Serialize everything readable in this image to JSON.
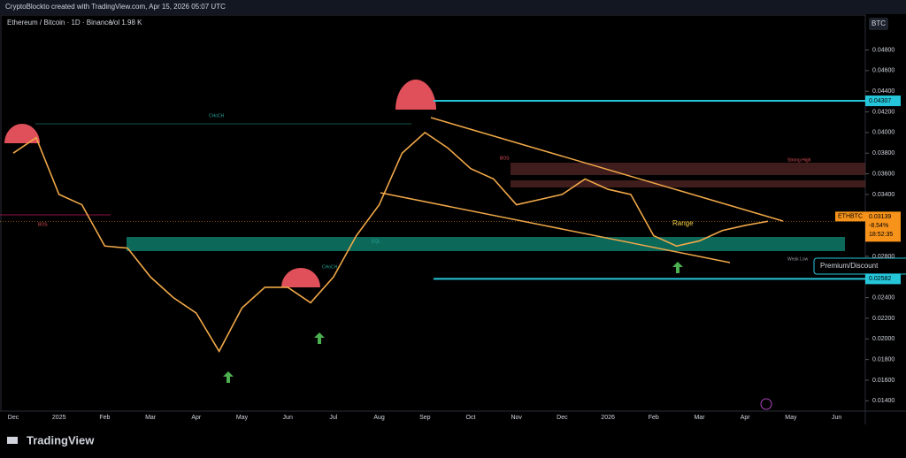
{
  "header": "CryptoBlockto created with TradingView.com, Apr 15, 2026 05:07 UTC",
  "footer": "TradingView",
  "chart_data": {
    "type": "line",
    "title": "Ethereum / Bitcoin · 1D · Binance",
    "volume": "Vol 1.98 K",
    "currency": "BTC",
    "color": "#f0a848",
    "grid": false,
    "categories": [
      "Dec",
      null,
      "2025",
      null,
      "Feb",
      null,
      "Mar",
      null,
      "Apr",
      null,
      "May",
      null,
      "Jun",
      null,
      "Jul",
      null,
      "Aug",
      null,
      "Sep",
      null,
      "Oct",
      null,
      "Nov",
      null,
      "Dec",
      null,
      "2026",
      null,
      "Feb",
      null,
      "Mar",
      null,
      "Apr",
      null,
      "May",
      null,
      "Jun",
      null
    ],
    "values": [
      0.038,
      0.0395,
      0.034,
      0.033,
      0.029,
      0.0288,
      0.026,
      0.024,
      0.0225,
      0.0188,
      0.023,
      0.025,
      0.025,
      0.0235,
      0.026,
      0.03,
      0.033,
      0.038,
      0.04,
      0.0385,
      0.0365,
      0.0355,
      0.033,
      0.0335,
      0.034,
      0.0355,
      0.0345,
      0.034,
      0.03,
      0.029,
      0.0295,
      0.0305,
      0.031,
      0.0314,
      null,
      null,
      null,
      null
    ],
    "ylim": [
      0.013,
      0.0513
    ],
    "yticks": [
      {
        "value": 0.048,
        "label": "0.04800"
      },
      {
        "value": 0.046,
        "label": "0.04600"
      },
      {
        "value": 0.044,
        "label": "0.04400"
      },
      {
        "value": 0.042,
        "label": "0.04200"
      },
      {
        "value": 0.04,
        "label": "0.04000"
      },
      {
        "value": 0.038,
        "label": "0.03800"
      },
      {
        "value": 0.036,
        "label": "0.03600"
      },
      {
        "value": 0.034,
        "label": "0.03400"
      },
      {
        "value": 0.032,
        "label": "0.03200"
      },
      {
        "value": 0.03,
        "label": "0.03000"
      },
      {
        "value": 0.028,
        "label": "0.02800"
      },
      {
        "value": 0.026,
        "label": "0.02600"
      },
      {
        "value": 0.024,
        "label": "0.02400"
      },
      {
        "value": 0.022,
        "label": "0.02200"
      },
      {
        "value": 0.02,
        "label": "0.02000"
      },
      {
        "value": 0.018,
        "label": "0.01800"
      },
      {
        "value": 0.016,
        "label": "0.01600"
      },
      {
        "value": 0.014,
        "label": "0.01400"
      }
    ],
    "levels": [
      {
        "value": 0.04307,
        "label": "0.04307",
        "color": "#26c6da"
      },
      {
        "value": 0.02582,
        "label": "0.02582",
        "color": "#26c6da"
      }
    ],
    "last_price": {
      "value": 0.03139,
      "label": "0.03139",
      "symbol": "ETHBTC",
      "change": "-8.54%",
      "countdown": "18:52:35",
      "color": "#f7931a"
    },
    "annotations": [
      "Range",
      "Premium/Discount",
      "CHoCH",
      "CHoCH",
      "BOS",
      "BOS",
      "EQL",
      "Strong High",
      "Weak Low"
    ]
  }
}
